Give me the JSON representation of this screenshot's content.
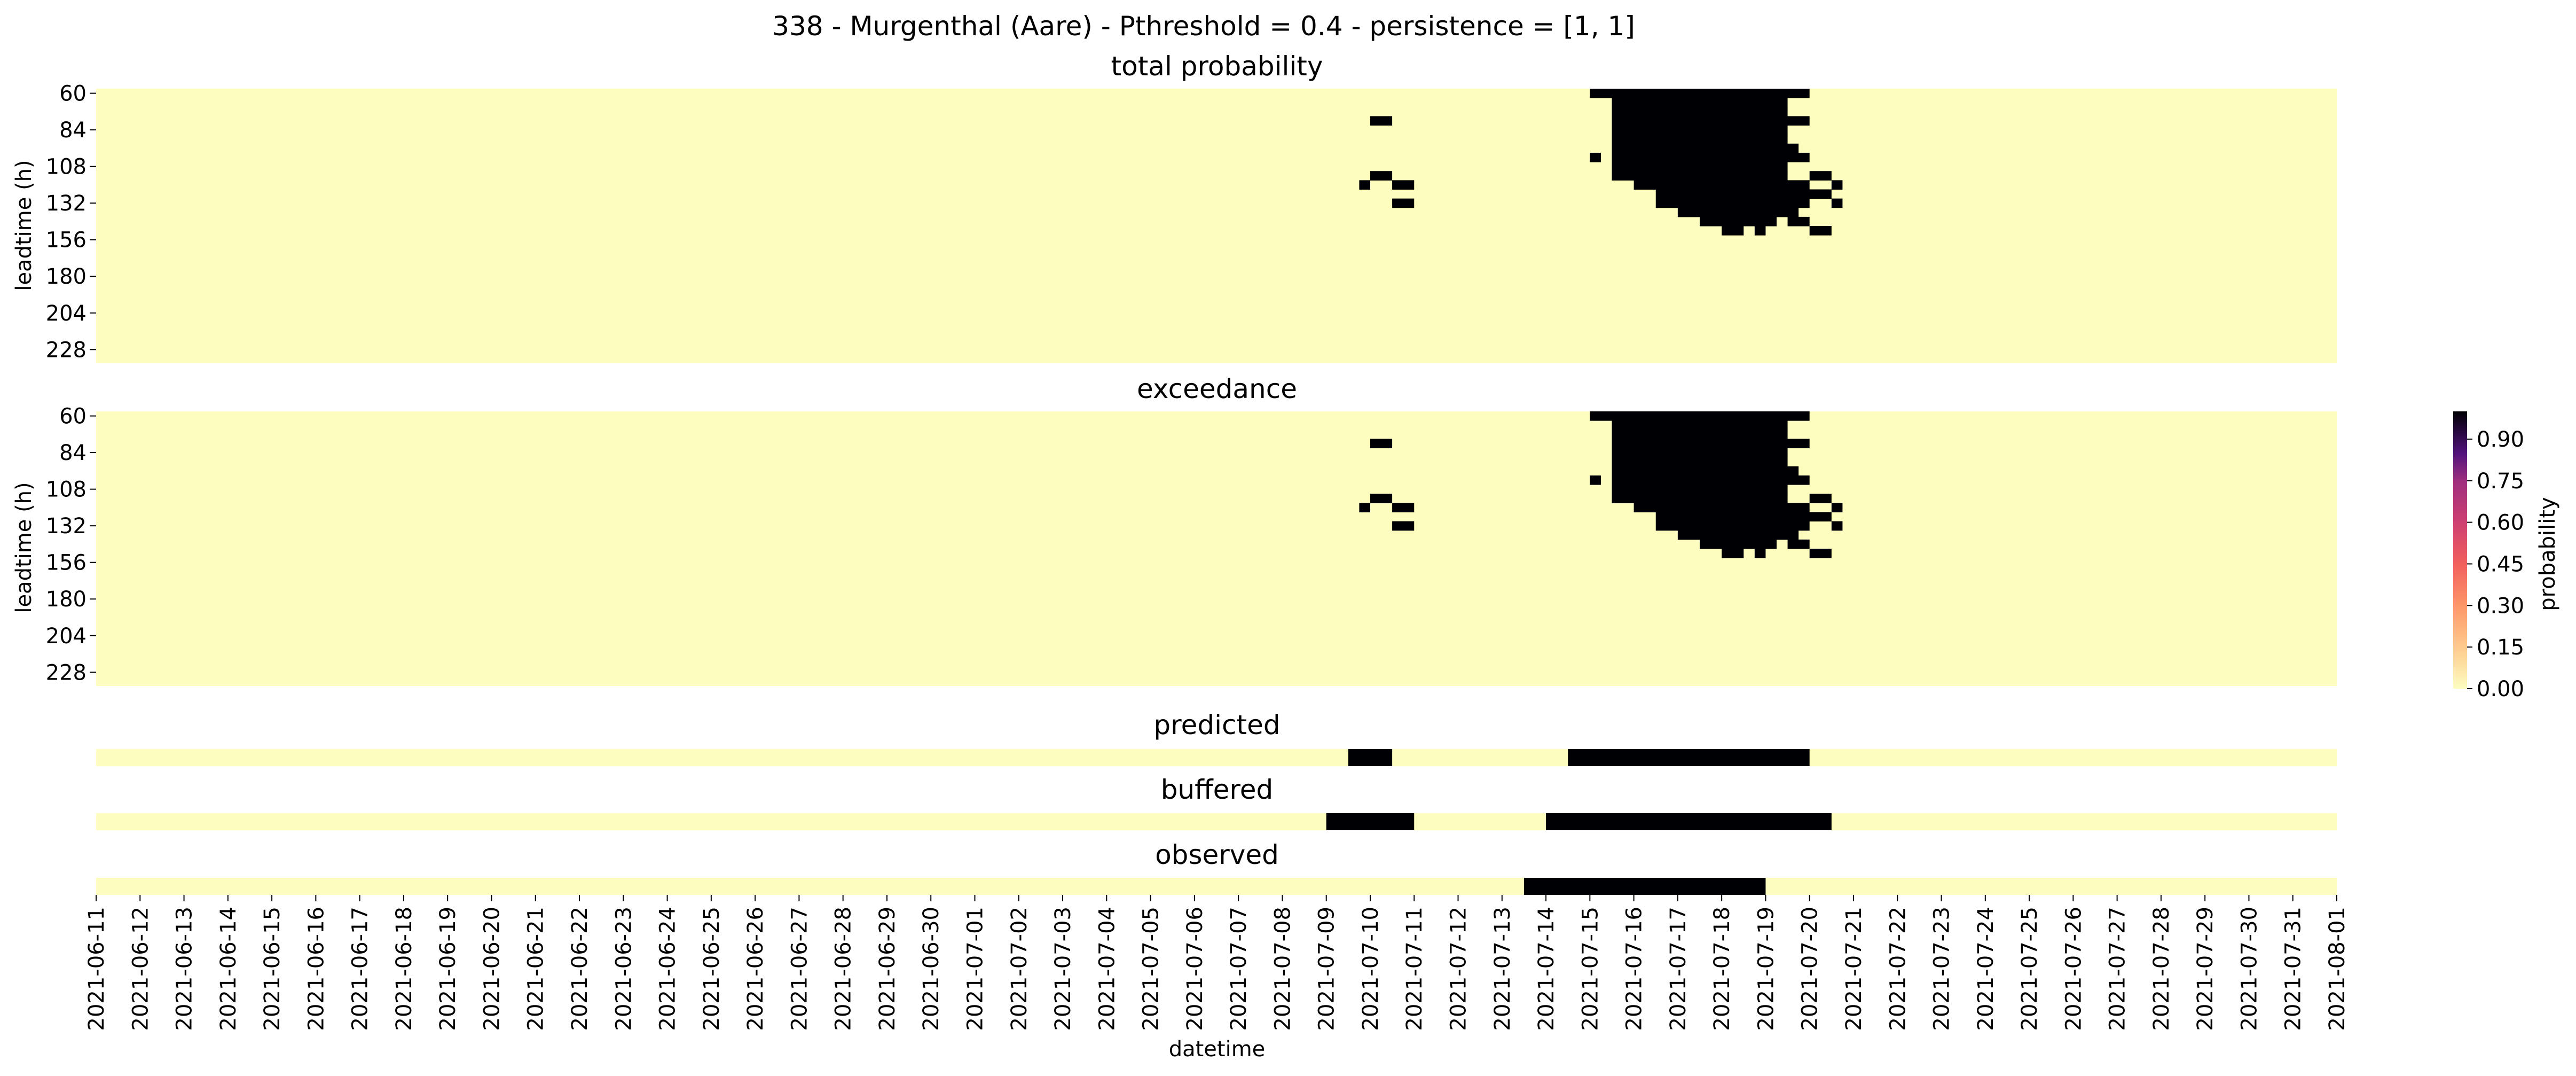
{
  "figure": {
    "title": "338 - Murgenthal (Aare) - Pthreshold = 0.4 - persistence = [1, 1]"
  },
  "chart_data": {
    "type": "heatmap",
    "x_dates": [
      "2021-06-11",
      "2021-06-12",
      "2021-06-13",
      "2021-06-14",
      "2021-06-15",
      "2021-06-16",
      "2021-06-17",
      "2021-06-18",
      "2021-06-19",
      "2021-06-20",
      "2021-06-21",
      "2021-06-22",
      "2021-06-23",
      "2021-06-24",
      "2021-06-25",
      "2021-06-26",
      "2021-06-27",
      "2021-06-28",
      "2021-06-29",
      "2021-06-30",
      "2021-07-01",
      "2021-07-02",
      "2021-07-03",
      "2021-07-04",
      "2021-07-05",
      "2021-07-06",
      "2021-07-07",
      "2021-07-08",
      "2021-07-09",
      "2021-07-10",
      "2021-07-11",
      "2021-07-12",
      "2021-07-13",
      "2021-07-14",
      "2021-07-15",
      "2021-07-16",
      "2021-07-17",
      "2021-07-18",
      "2021-07-19",
      "2021-07-20",
      "2021-07-21",
      "2021-07-22",
      "2021-07-23",
      "2021-07-24",
      "2021-07-25",
      "2021-07-26",
      "2021-07-27",
      "2021-07-28",
      "2021-07-29",
      "2021-07-30",
      "2021-07-31",
      "2021-08-01"
    ],
    "xlabel": "datetime",
    "heatmaps": [
      {
        "title": "total probability",
        "ylabel": "leadtime (h)",
        "yticks": [
          60,
          84,
          108,
          132,
          156,
          180,
          204,
          228
        ],
        "leadtime_range": [
          60,
          240
        ],
        "leadtime_step": 6,
        "zero_value": 0.0,
        "high_cells": [
          {
            "lead": 60,
            "from": "2021-07-15 00:00",
            "to": "2021-07-20 00:00"
          },
          {
            "lead": 66,
            "from": "2021-07-15 12:00",
            "to": "2021-07-19 12:00"
          },
          {
            "lead": 72,
            "from": "2021-07-15 12:00",
            "to": "2021-07-19 12:00"
          },
          {
            "lead": 78,
            "from": "2021-07-10 00:00",
            "to": "2021-07-10 12:00"
          },
          {
            "lead": 78,
            "from": "2021-07-15 12:00",
            "to": "2021-07-20 00:00"
          },
          {
            "lead": 84,
            "from": "2021-07-15 12:00",
            "to": "2021-07-19 12:00"
          },
          {
            "lead": 90,
            "from": "2021-07-15 12:00",
            "to": "2021-07-19 12:00"
          },
          {
            "lead": 96,
            "from": "2021-07-15 12:00",
            "to": "2021-07-19 18:00"
          },
          {
            "lead": 102,
            "from": "2021-07-15 00:00",
            "to": "2021-07-15 06:00"
          },
          {
            "lead": 102,
            "from": "2021-07-15 12:00",
            "to": "2021-07-20 00:00"
          },
          {
            "lead": 108,
            "from": "2021-07-15 12:00",
            "to": "2021-07-19 12:00"
          },
          {
            "lead": 114,
            "from": "2021-07-10 00:00",
            "to": "2021-07-10 12:00"
          },
          {
            "lead": 114,
            "from": "2021-07-15 12:00",
            "to": "2021-07-19 12:00"
          },
          {
            "lead": 114,
            "from": "2021-07-20 00:00",
            "to": "2021-07-20 12:00"
          },
          {
            "lead": 120,
            "from": "2021-07-09 18:00",
            "to": "2021-07-10 00:00"
          },
          {
            "lead": 120,
            "from": "2021-07-10 12:00",
            "to": "2021-07-11 00:00"
          },
          {
            "lead": 120,
            "from": "2021-07-16 00:00",
            "to": "2021-07-20 00:00"
          },
          {
            "lead": 120,
            "from": "2021-07-20 12:00",
            "to": "2021-07-20 18:00"
          },
          {
            "lead": 126,
            "from": "2021-07-16 12:00",
            "to": "2021-07-20 12:00"
          },
          {
            "lead": 132,
            "from": "2021-07-16 12:00",
            "to": "2021-07-20 00:00"
          },
          {
            "lead": 132,
            "from": "2021-07-10 12:00",
            "to": "2021-07-11 00:00"
          },
          {
            "lead": 132,
            "from": "2021-07-20 12:00",
            "to": "2021-07-20 18:00"
          },
          {
            "lead": 138,
            "from": "2021-07-17 00:00",
            "to": "2021-07-19 18:00"
          },
          {
            "lead": 144,
            "from": "2021-07-17 12:00",
            "to": "2021-07-19 06:00"
          },
          {
            "lead": 144,
            "from": "2021-07-19 12:00",
            "to": "2021-07-20 00:00"
          },
          {
            "lead": 150,
            "from": "2021-07-18 00:00",
            "to": "2021-07-18 12:00"
          },
          {
            "lead": 150,
            "from": "2021-07-18 18:00",
            "to": "2021-07-19 00:00"
          },
          {
            "lead": 150,
            "from": "2021-07-20 00:00",
            "to": "2021-07-20 12:00"
          }
        ]
      },
      {
        "title": "exceedance",
        "ylabel": "leadtime (h)",
        "yticks": [
          60,
          84,
          108,
          132,
          156,
          180,
          204,
          228
        ],
        "same_as": "total probability"
      }
    ],
    "strips": [
      {
        "title": "predicted",
        "events": [
          {
            "from": "2021-07-09 12:00",
            "to": "2021-07-10 12:00"
          },
          {
            "from": "2021-07-14 12:00",
            "to": "2021-07-20 00:00"
          }
        ]
      },
      {
        "title": "buffered",
        "events": [
          {
            "from": "2021-07-09 00:00",
            "to": "2021-07-11 00:00"
          },
          {
            "from": "2021-07-14 00:00",
            "to": "2021-07-20 12:00"
          }
        ]
      },
      {
        "title": "observed",
        "events": [
          {
            "from": "2021-07-13 12:00",
            "to": "2021-07-19 00:00"
          }
        ]
      }
    ],
    "colorbar": {
      "label": "probability",
      "ticks": [
        "0.00",
        "0.15",
        "0.30",
        "0.45",
        "0.60",
        "0.75",
        "0.90"
      ],
      "range": [
        0,
        1
      ],
      "colormap": "magma_r",
      "low_color": "#fcfdbf",
      "high_color": "#000004"
    }
  }
}
